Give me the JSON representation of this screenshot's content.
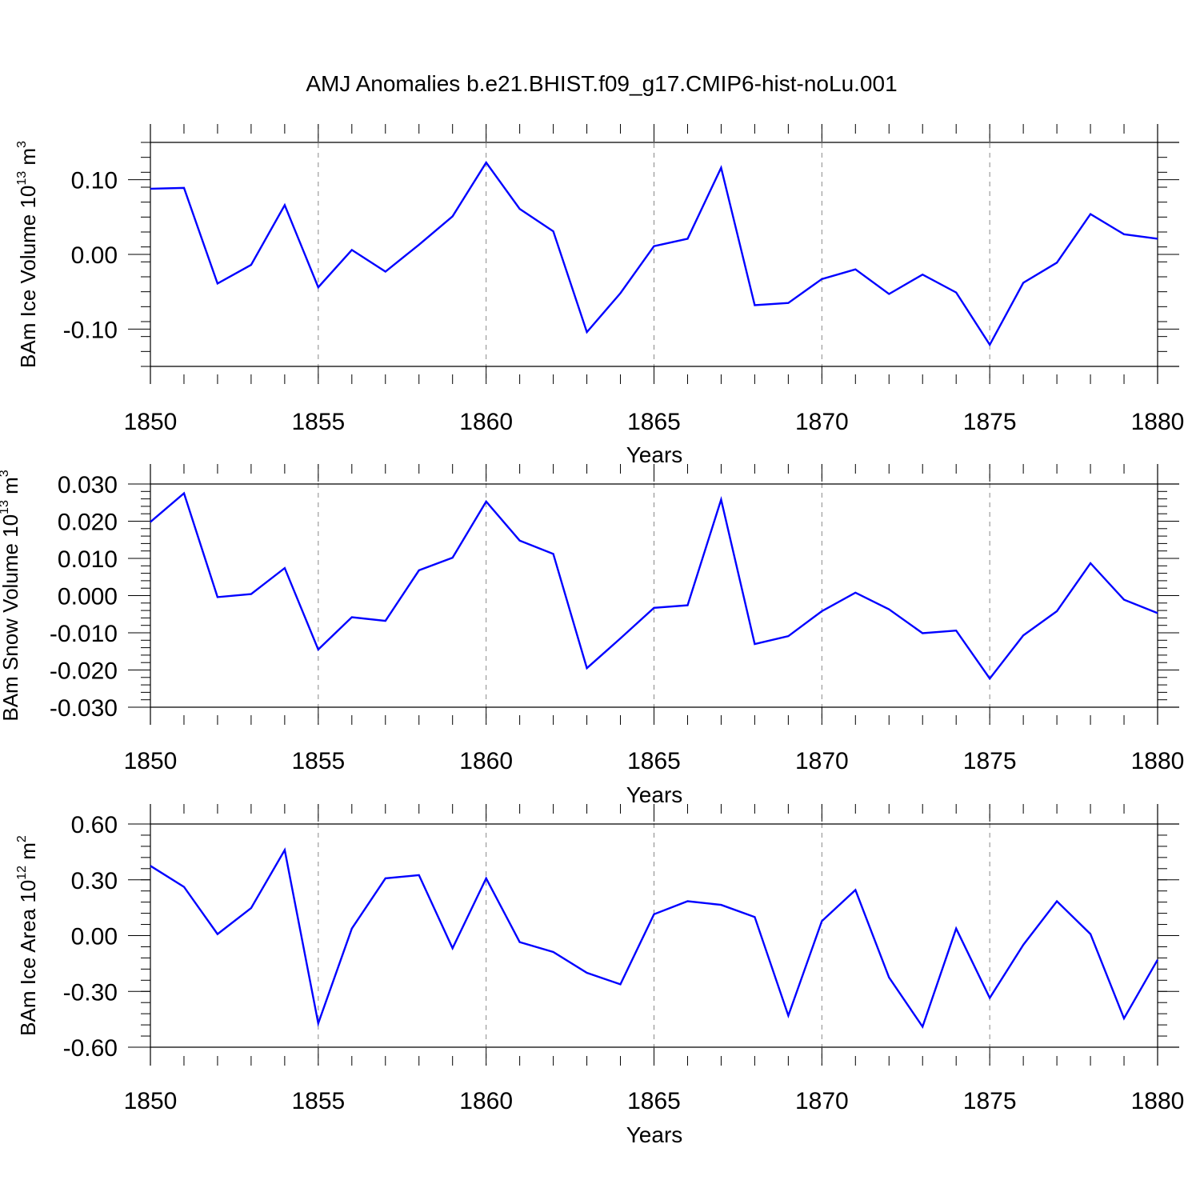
{
  "title": "AMJ Anomalies b.e21.BHIST.f09_g17.CMIP6-hist-noLu.001",
  "colors": {
    "series": "#0000ff",
    "axis": "#000000",
    "grid": "#888888"
  },
  "chart_data": [
    {
      "type": "line",
      "title": "AMJ Anomalies b.e21.BHIST.f09_g17.CMIP6-hist-noLu.001",
      "xlabel": "Years",
      "ylabel": {
        "base": "BAm Ice Volume 10",
        "exp1": "13",
        "unit": " m",
        "exp2": "3"
      },
      "x": [
        1850,
        1851,
        1852,
        1853,
        1854,
        1855,
        1856,
        1857,
        1858,
        1859,
        1860,
        1861,
        1862,
        1863,
        1864,
        1865,
        1866,
        1867,
        1868,
        1869,
        1870,
        1871,
        1872,
        1873,
        1874,
        1875,
        1876,
        1877,
        1878,
        1879,
        1880
      ],
      "values": [
        0.088,
        0.089,
        -0.039,
        -0.014,
        0.066,
        -0.044,
        0.006,
        -0.023,
        0.013,
        0.051,
        0.123,
        0.061,
        0.031,
        -0.104,
        -0.052,
        0.011,
        0.021,
        0.116,
        -0.068,
        -0.065,
        -0.033,
        -0.02,
        -0.053,
        -0.027,
        -0.051,
        -0.121,
        -0.038,
        -0.011,
        0.054,
        0.027,
        0.021
      ],
      "xlim": [
        1850,
        1880
      ],
      "ylim": [
        -0.15,
        0.15
      ],
      "ytick_values": [
        -0.1,
        0.0,
        0.1
      ],
      "ytick_labels": [
        "-0.10",
        "0.00",
        "0.10"
      ],
      "xticks": [
        "1850",
        "1855",
        "1860",
        "1865",
        "1870",
        "1875",
        "1880"
      ],
      "grid": "vertical dashed at major x ticks"
    },
    {
      "type": "line",
      "xlabel": "Years",
      "ylabel": {
        "base": "BAm Snow Volume 10",
        "exp1": "13",
        "unit": " m",
        "exp2": "3"
      },
      "x": [
        1850,
        1851,
        1852,
        1853,
        1854,
        1855,
        1856,
        1857,
        1858,
        1859,
        1860,
        1861,
        1862,
        1863,
        1864,
        1865,
        1866,
        1867,
        1868,
        1869,
        1870,
        1871,
        1872,
        1873,
        1874,
        1875,
        1876,
        1877,
        1878,
        1879,
        1880
      ],
      "values": [
        0.0198,
        0.0275,
        -0.0004,
        0.0004,
        0.0074,
        -0.0145,
        -0.0058,
        -0.0068,
        0.0068,
        0.0102,
        0.0253,
        0.0148,
        0.0112,
        -0.0195,
        -0.0115,
        -0.0033,
        -0.0026,
        0.0258,
        -0.013,
        -0.0109,
        -0.0042,
        0.0008,
        -0.0037,
        -0.0101,
        -0.0094,
        -0.0223,
        -0.0107,
        -0.0042,
        0.0087,
        -0.0011,
        -0.0047
      ],
      "xlim": [
        1850,
        1880
      ],
      "ylim": [
        -0.03,
        0.03
      ],
      "ytick_values": [
        -0.03,
        -0.02,
        -0.01,
        0.0,
        0.01,
        0.02,
        0.03
      ],
      "ytick_labels": [
        "-0.030",
        "-0.020",
        "-0.010",
        "0.000",
        "0.010",
        "0.020",
        "0.030"
      ],
      "xticks": [
        "1850",
        "1855",
        "1860",
        "1865",
        "1870",
        "1875",
        "1880"
      ],
      "grid": "vertical dashed at major x ticks"
    },
    {
      "type": "line",
      "xlabel": "Years",
      "ylabel": {
        "base": "BAm Ice Area 10",
        "exp1": "12",
        "unit": " m",
        "exp2": "2"
      },
      "x": [
        1850,
        1851,
        1852,
        1853,
        1854,
        1855,
        1856,
        1857,
        1858,
        1859,
        1860,
        1861,
        1862,
        1863,
        1864,
        1865,
        1866,
        1867,
        1868,
        1869,
        1870,
        1871,
        1872,
        1873,
        1874,
        1875,
        1876,
        1877,
        1878,
        1879,
        1880
      ],
      "values": [
        0.375,
        0.262,
        0.008,
        0.148,
        0.46,
        -0.472,
        0.038,
        0.308,
        0.325,
        -0.068,
        0.308,
        -0.035,
        -0.088,
        -0.2,
        -0.262,
        0.115,
        0.185,
        0.165,
        0.1,
        -0.43,
        0.078,
        0.245,
        -0.225,
        -0.49,
        0.038,
        -0.335,
        -0.05,
        0.185,
        0.008,
        -0.445,
        -0.13
      ],
      "xlim": [
        1850,
        1880
      ],
      "ylim": [
        -0.6,
        0.6
      ],
      "ytick_values": [
        -0.6,
        -0.3,
        0.0,
        0.3,
        0.6
      ],
      "ytick_labels": [
        "-0.60",
        "-0.30",
        "0.00",
        "0.30",
        "0.60"
      ],
      "xticks": [
        "1850",
        "1855",
        "1860",
        "1865",
        "1870",
        "1875",
        "1880"
      ],
      "grid": "vertical dashed at major x ticks"
    }
  ]
}
